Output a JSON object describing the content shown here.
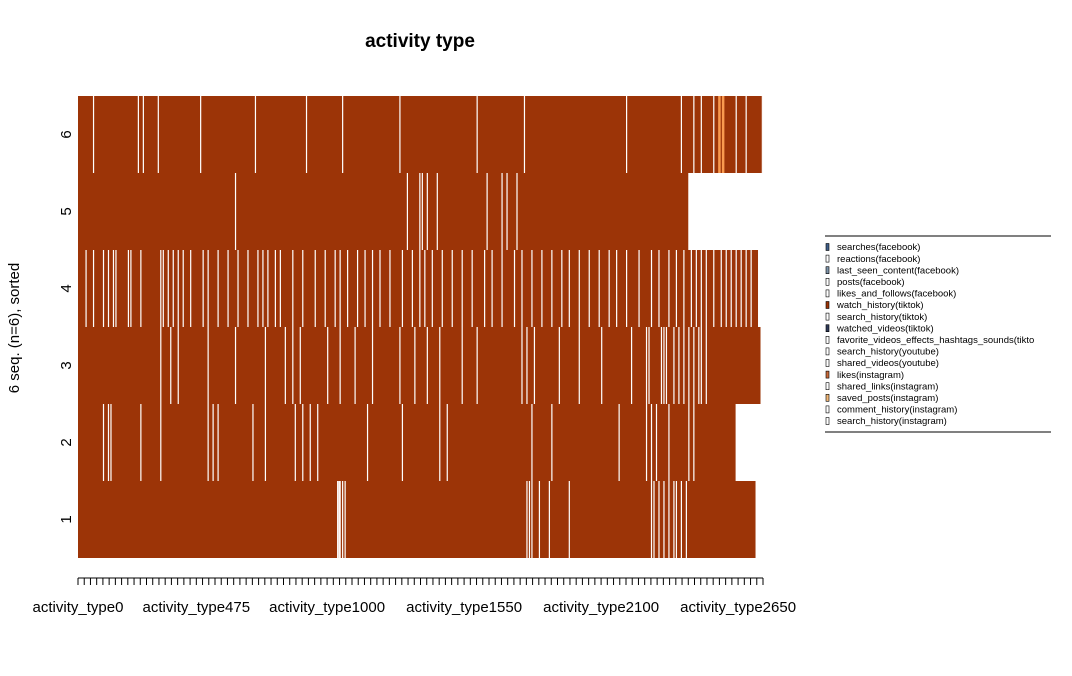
{
  "chart_data": {
    "type": "heatmap",
    "title": "activity type",
    "ylabel": "6 seq. (n=6), sorted",
    "xlabel": "",
    "x_tick_labels": [
      "activity_type0",
      "activity_type475",
      "activity_type1000",
      "activity_type1550",
      "activity_type2100",
      "activity_type2650"
    ],
    "x_tick_positions": [
      0,
      475,
      1000,
      1550,
      2100,
      2650
    ],
    "xlim": [
      0,
      2750
    ],
    "sequences": [
      {
        "label": "1",
        "length": 2720,
        "minor_events": [
          1040,
          1045,
          1050,
          1060,
          1070,
          1800,
          1810,
          1820,
          1850,
          1890,
          1970,
          2300,
          2310,
          2330,
          2350,
          2370,
          2390,
          2400,
          2420,
          2440
        ]
      },
      {
        "label": "2",
        "length": 2640,
        "minor_events": [
          100,
          120,
          130,
          250,
          330,
          520,
          540,
          560,
          700,
          750,
          870,
          900,
          930,
          960,
          1160,
          1300,
          1450,
          1480,
          1820,
          1900,
          2170,
          2280,
          2300,
          2320,
          2370,
          2450,
          2470
        ]
      },
      {
        "label": "3",
        "length": 2740,
        "minor_events": [
          330,
          370,
          400,
          520,
          630,
          750,
          830,
          860,
          890,
          1000,
          1050,
          1110,
          1180,
          1290,
          1350,
          1400,
          1450,
          1540,
          1600,
          1780,
          1800,
          1830,
          1930,
          2010,
          2100,
          2220,
          2280,
          2290,
          2340,
          2350,
          2360,
          2390,
          2410,
          2430,
          2450,
          2470,
          2490,
          2500,
          2520
        ]
      },
      {
        "label": "4",
        "length": 2730,
        "minor_events": [
          30,
          60,
          100,
          120,
          140,
          150,
          200,
          210,
          250,
          330,
          340,
          360,
          380,
          400,
          420,
          450,
          500,
          520,
          560,
          600,
          640,
          680,
          720,
          740,
          760,
          790,
          810,
          860,
          900,
          950,
          990,
          1030,
          1050,
          1080,
          1120,
          1150,
          1180,
          1210,
          1250,
          1300,
          1340,
          1370,
          1390,
          1420,
          1460,
          1500,
          1540,
          1580,
          1630,
          1660,
          1700,
          1750,
          1780,
          1820,
          1860,
          1900,
          1940,
          1970,
          2010,
          2050,
          2090,
          2130,
          2160,
          2200,
          2250,
          2300,
          2330,
          2370,
          2400,
          2430,
          2460,
          2480,
          2500,
          2520,
          2550,
          2580,
          2600,
          2620,
          2640,
          2660,
          2680,
          2700
        ]
      },
      {
        "label": "5",
        "length": 2450,
        "minor_events": [
          630,
          1320,
          1370,
          1380,
          1400,
          1440,
          1640,
          1700,
          1720,
          1760
        ]
      },
      {
        "label": "6",
        "length": 2750,
        "minor_events": [
          60,
          240,
          260,
          320,
          490,
          710,
          915,
          1060,
          1290,
          1600,
          1790,
          2200,
          2420,
          2470,
          2500,
          2550,
          2640,
          2680,
          2745
        ],
        "highlight_events": [
          2570,
          2585
        ]
      }
    ],
    "colors": {
      "main": "#9C3407",
      "minor": "#FFFFFF",
      "highlight": "#F99A4F"
    },
    "legend": {
      "placement": "right",
      "entries": [
        {
          "label": "searches(facebook)",
          "color": "#3F5E8A"
        },
        {
          "label": "reactions(facebook)",
          "color": "#FFFFFF"
        },
        {
          "label": "last_seen_content(facebook)",
          "color": "#7D93A8"
        },
        {
          "label": "posts(facebook)",
          "color": "#FFFFFF"
        },
        {
          "label": "likes_and_follows(facebook)",
          "color": "#FFFFFF"
        },
        {
          "label": "watch_history(tiktok)",
          "color": "#9C3407"
        },
        {
          "label": "search_history(tiktok)",
          "color": "#FFFFFF"
        },
        {
          "label": "watched_videos(tiktok)",
          "color": "#2E3A58"
        },
        {
          "label": "favorite_videos_effects_hashtags_sounds(tikto",
          "color": "#FFFFFF"
        },
        {
          "label": "search_history(youtube)",
          "color": "#FFFFFF"
        },
        {
          "label": "shared_videos(youtube)",
          "color": "#FFFFFF"
        },
        {
          "label": "likes(instagram)",
          "color": "#C96A3A"
        },
        {
          "label": "shared_links(instagram)",
          "color": "#FFFFFF"
        },
        {
          "label": "saved_posts(instagram)",
          "color": "#F2B878"
        },
        {
          "label": "comment_history(instagram)",
          "color": "#FFFFFF"
        },
        {
          "label": "search_history(instagram)",
          "color": "#FFFFFF"
        }
      ]
    }
  }
}
